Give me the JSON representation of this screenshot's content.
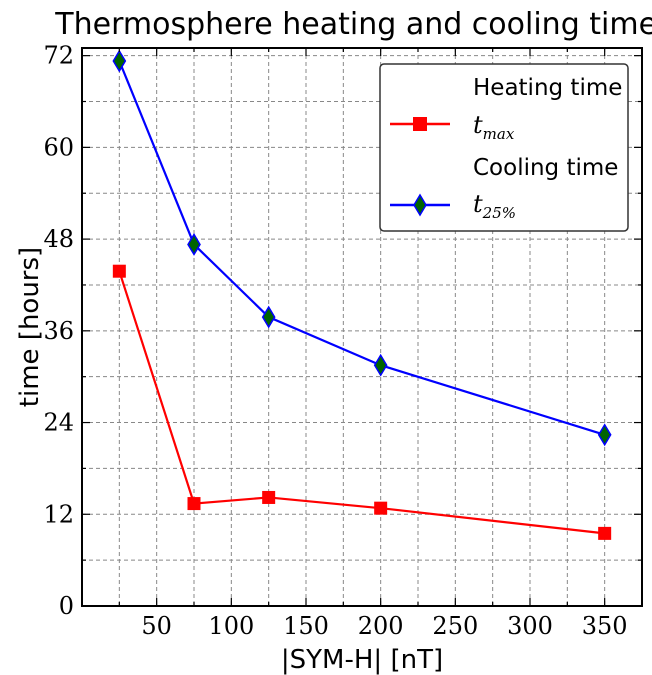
{
  "chart_data": {
    "type": "line",
    "title": "Thermosphere heating and cooling times",
    "xlabel": "|SYM-H| [nT]",
    "ylabel": "time [hours]",
    "xlim": [
      0,
      375
    ],
    "ylim": [
      0,
      73
    ],
    "xticks": [
      50,
      100,
      150,
      200,
      250,
      300,
      350
    ],
    "yticks": [
      0,
      12,
      24,
      36,
      48,
      60,
      72
    ],
    "grid": true,
    "legend_position": "top-right",
    "legend": {
      "heating_header": "Heating time",
      "cooling_header": "Cooling time"
    },
    "series": [
      {
        "name_main": "t",
        "name_sub": "max",
        "color": "#ff0000",
        "marker": "square",
        "x": [
          25,
          75,
          125,
          200,
          350
        ],
        "y": [
          43.8,
          13.4,
          14.2,
          12.8,
          9.5
        ]
      },
      {
        "name_main": "t",
        "name_sub": "25%",
        "color": "#0000ff",
        "marker_fill": "#006400",
        "marker": "diamond",
        "x": [
          25,
          75,
          125,
          200,
          350
        ],
        "y": [
          71.3,
          47.3,
          37.8,
          31.5,
          22.4
        ]
      }
    ]
  }
}
